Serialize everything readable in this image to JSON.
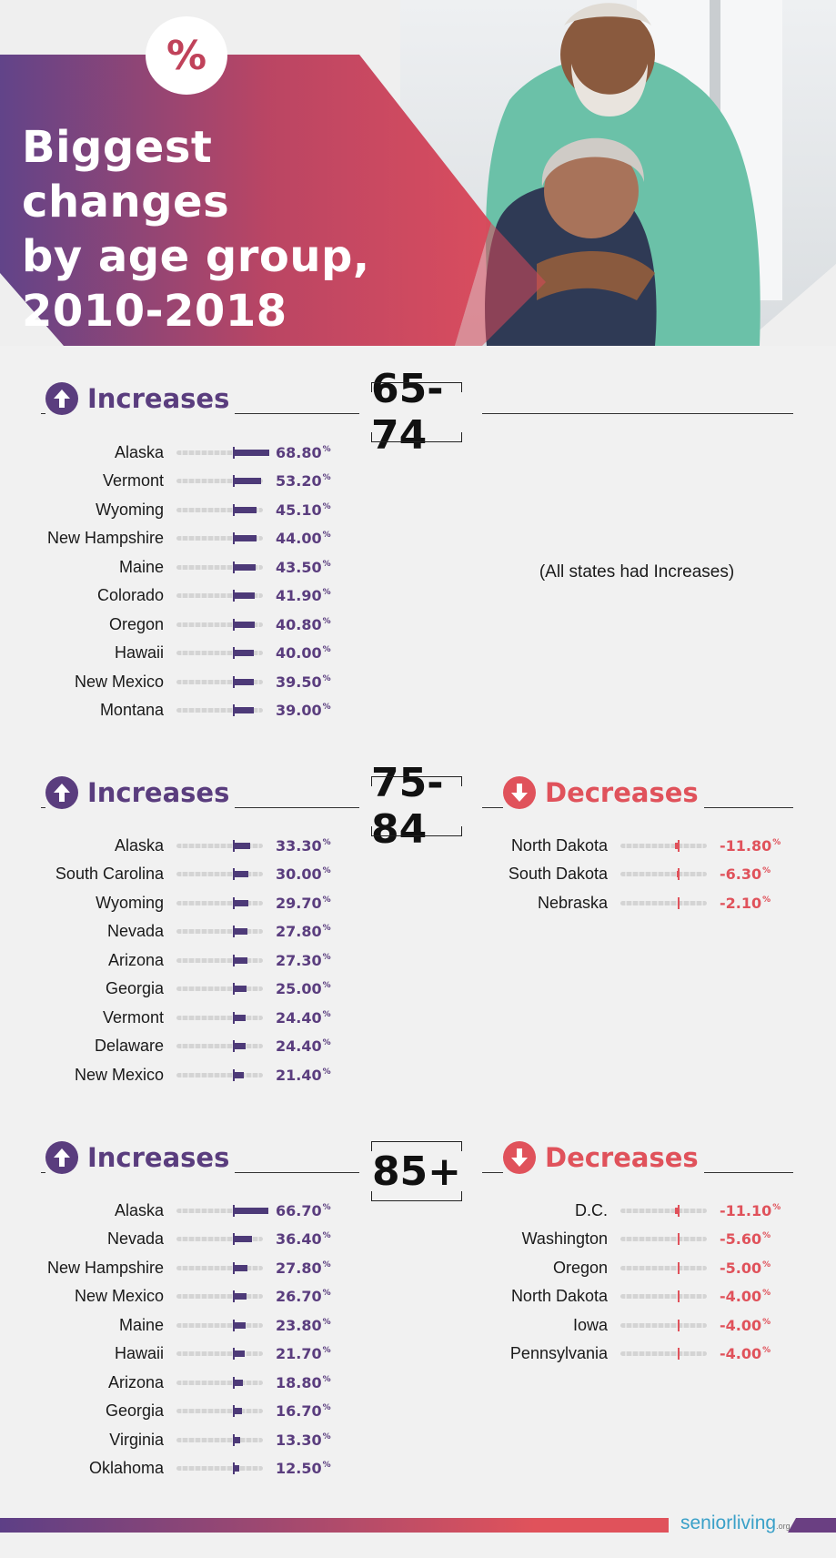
{
  "header": {
    "badge": "%",
    "title_lines": [
      "Biggest changes",
      "by age group,",
      "2010-2018"
    ]
  },
  "colors": {
    "increase": "#5a3d7e",
    "decrease": "#e0525b"
  },
  "icons": {
    "increase": "arrow-up-icon",
    "decrease": "arrow-down-icon"
  },
  "sections": [
    {
      "age": "65-74",
      "increase_label": "Increases",
      "decrease_label": "",
      "note": "(All states had Increases)"
    },
    {
      "age": "75-84",
      "increase_label": "Increases",
      "decrease_label": "Decreases"
    },
    {
      "age": "85+",
      "increase_label": "Increases",
      "decrease_label": "Decreases"
    }
  ],
  "chart_data": [
    {
      "type": "bar",
      "title": "65-74",
      "series": [
        {
          "name": "Increases",
          "categories": [
            "Alaska",
            "Vermont",
            "Wyoming",
            "New Hampshire",
            "Maine",
            "Colorado",
            "Oregon",
            "Hawaii",
            "New Mexico",
            "Montana"
          ],
          "values": [
            68.8,
            53.2,
            45.1,
            44.0,
            43.5,
            41.9,
            40.8,
            40.0,
            39.5,
            39.0
          ],
          "labels": [
            "68.80",
            "53.20",
            "45.10",
            "44.00",
            "43.50",
            "41.90",
            "40.80",
            "40.00",
            "39.50",
            "39.00"
          ]
        }
      ],
      "unit": "%"
    },
    {
      "type": "bar",
      "title": "75-84",
      "series": [
        {
          "name": "Increases",
          "categories": [
            "Alaska",
            "South Carolina",
            "Wyoming",
            "Nevada",
            "Arizona",
            "Georgia",
            "Vermont",
            "Delaware",
            "New Mexico"
          ],
          "values": [
            33.3,
            30.0,
            29.7,
            27.8,
            27.3,
            25.0,
            24.4,
            24.4,
            21.4
          ],
          "labels": [
            "33.30",
            "30.00",
            "29.70",
            "27.80",
            "27.30",
            "25.00",
            "24.40",
            "24.40",
            "21.40"
          ]
        },
        {
          "name": "Decreases",
          "categories": [
            "North Dakota",
            "South Dakota",
            "Nebraska"
          ],
          "values": [
            -11.8,
            -6.3,
            -2.1
          ],
          "labels": [
            "-11.80",
            "-6.30",
            "-2.10"
          ]
        }
      ],
      "unit": "%"
    },
    {
      "type": "bar",
      "title": "85+",
      "series": [
        {
          "name": "Increases",
          "categories": [
            "Alaska",
            "Nevada",
            "New Hampshire",
            "New Mexico",
            "Maine",
            "Hawaii",
            "Arizona",
            "Georgia",
            "Virginia",
            "Oklahoma"
          ],
          "values": [
            66.7,
            36.4,
            27.8,
            26.7,
            23.8,
            21.7,
            18.8,
            16.7,
            13.3,
            12.5
          ],
          "labels": [
            "66.70",
            "36.40",
            "27.80",
            "26.70",
            "23.80",
            "21.70",
            "18.80",
            "16.70",
            "13.30",
            "12.50"
          ]
        },
        {
          "name": "Decreases",
          "categories": [
            "D.C.",
            "Washington",
            "Oregon",
            "North Dakota",
            "Iowa",
            "Pennsylvania"
          ],
          "values": [
            -11.1,
            -5.6,
            -5.0,
            -4.0,
            -4.0,
            -4.0
          ],
          "labels": [
            "-11.10",
            "-5.60",
            "-5.00",
            "-4.00",
            "-4.00",
            "-4.00"
          ]
        }
      ],
      "unit": "%"
    }
  ],
  "footer": {
    "brand_main": "seniorliving",
    "brand_suffix": ".org"
  }
}
